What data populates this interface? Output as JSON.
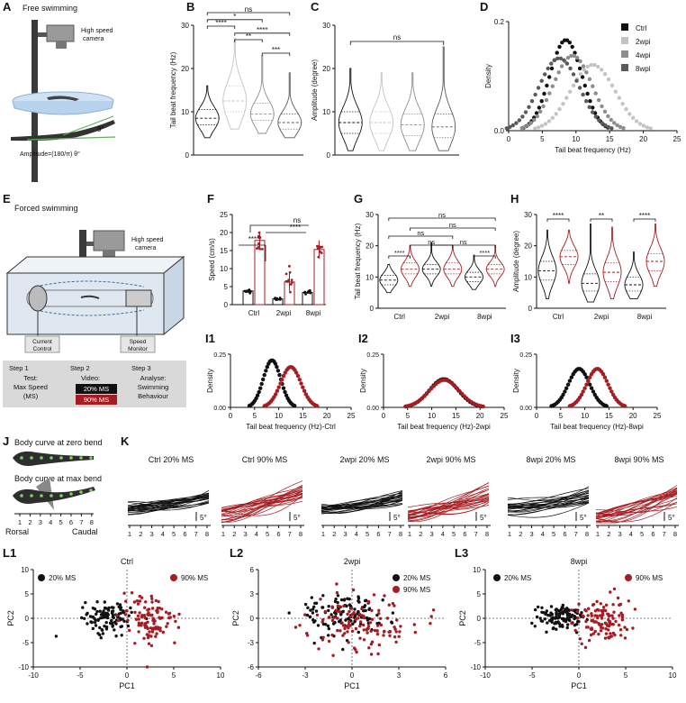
{
  "colors": {
    "black": "#111111",
    "red": "#a51d22",
    "grey1": "#c4c4c4",
    "grey2": "#8d8d8d",
    "grey3": "#5a5a5a",
    "box": "#d9d9d9"
  },
  "panel_labels": {
    "A": "A",
    "B": "B",
    "C": "C",
    "D": "D",
    "E": "E",
    "F": "F",
    "G": "G",
    "H": "H",
    "I1": "I1",
    "I2": "I2",
    "I3": "I3",
    "J": "J",
    "K": "K",
    "L1": "L1",
    "L2": "L2",
    "L3": "L3"
  },
  "panelA": {
    "title": "Free swimming",
    "camera": [
      "High speed",
      "camera"
    ],
    "theta": "θ°",
    "amplitude": "Amplitude=(180/π) θ°"
  },
  "panelE": {
    "title": "Forced swimming",
    "camera": [
      "High speed",
      "camera"
    ],
    "current_control": [
      "Current",
      "Control"
    ],
    "speed_monitor": [
      "Speed",
      "Monitor"
    ],
    "steps": [
      {
        "head": "Step 1",
        "lines": [
          "Test:",
          "Max Speed",
          "(MS)"
        ]
      },
      {
        "head": "Step 2",
        "lines": [
          "Video:"
        ]
      },
      {
        "head": "Step 3",
        "lines": [
          "Analyse:",
          "Swimming",
          "Behaviour"
        ]
      }
    ],
    "ms20": "20% MS",
    "ms90": "90% MS"
  },
  "panelJ": {
    "zero": "Body curve at zero bend",
    "max": "Body curve at max bend",
    "ticks": [
      "1",
      "2",
      "3",
      "4",
      "5",
      "6",
      "7",
      "8"
    ],
    "rostral": "Rorsal",
    "caudal": "Caudal"
  },
  "panelK": {
    "scale": "5°",
    "ticks": [
      "1",
      "2",
      "3",
      "4",
      "5",
      "6",
      "7",
      "8"
    ],
    "titles": [
      "Ctrl 20% MS",
      "Ctrl 90% MS",
      "2wpi 20% MS",
      "2wpi 90% MS",
      "8wpi 20% MS",
      "8wpi 90% MS"
    ]
  },
  "chart_data": [
    {
      "id": "B",
      "type": "violin",
      "ylabel": "Tail beat frequency (Hz)",
      "ylim": [
        0,
        30
      ],
      "yticks": [
        "0",
        "10",
        "20",
        "30"
      ],
      "groups": [
        {
          "median": 8.5,
          "q1": 7,
          "q3": 10.5,
          "min": 4,
          "max": 16
        },
        {
          "median": 12.5,
          "q1": 10,
          "q3": 16,
          "min": 6,
          "max": 27
        },
        {
          "median": 9.5,
          "q1": 8,
          "q3": 12,
          "min": 5,
          "max": 23
        },
        {
          "median": 7.5,
          "q1": 6,
          "q3": 9.5,
          "min": 4,
          "max": 19
        }
      ],
      "significance": [
        "ns",
        "*",
        "****",
        "****",
        "**",
        "***"
      ]
    },
    {
      "id": "C",
      "type": "violin",
      "ylabel": "Amplitude (degree)",
      "ylim": [
        0,
        30
      ],
      "yticks": [
        "0",
        "10",
        "20",
        "30"
      ],
      "groups": [
        {
          "median": 7.5,
          "q1": 5,
          "q3": 10,
          "min": 1,
          "max": 20
        },
        {
          "median": 7.5,
          "q1": 5,
          "q3": 10,
          "min": 1,
          "max": 19
        },
        {
          "median": 7,
          "q1": 4.5,
          "q3": 9.5,
          "min": 1,
          "max": 19
        },
        {
          "median": 6.5,
          "q1": 4,
          "q3": 9.5,
          "min": 1,
          "max": 25
        }
      ],
      "significance": [
        "ns"
      ]
    },
    {
      "id": "D",
      "type": "scatter",
      "xlabel": "Tail beat frequency (Hz)",
      "ylabel": "Density",
      "xlim": [
        0,
        25
      ],
      "ylim": [
        0,
        0.2
      ],
      "xticks": [
        "0",
        "5",
        "10",
        "15",
        "20",
        "25"
      ],
      "yticks": [
        "0.0",
        "0.2"
      ],
      "series": [
        {
          "name": "Ctrl",
          "mean": 8.5,
          "sd": 2.4,
          "color": "#111111"
        },
        {
          "name": "2wpi",
          "mean": 12.5,
          "sd": 3.3,
          "color": "#c4c4c4"
        },
        {
          "name": "4wpi",
          "mean": 9.5,
          "sd": 2.9,
          "color": "#8d8d8d"
        },
        {
          "name": "8wpi",
          "mean": 7.5,
          "sd": 3.0,
          "color": "#5a5a5a"
        }
      ]
    },
    {
      "id": "F",
      "type": "bar",
      "ylabel": "Speed (cm/s)",
      "ylim": [
        0,
        25
      ],
      "yticks": [
        "0",
        "5",
        "10",
        "15",
        "20",
        "25"
      ],
      "categories": [
        "Ctrl",
        "2wpi",
        "8wpi"
      ],
      "series": [
        {
          "name": "20% MS",
          "values": [
            3.8,
            1.6,
            3.4
          ]
        },
        {
          "name": "90% MS",
          "values": [
            17.8,
            6.3,
            15.3
          ]
        }
      ],
      "significance": [
        "ns",
        "****",
        "****"
      ]
    },
    {
      "id": "G",
      "type": "violin",
      "ylabel": "Tail beat frequency (Hz)",
      "ylim": [
        0,
        30
      ],
      "yticks": [
        "0",
        "10",
        "20",
        "30"
      ],
      "categories": [
        "Ctrl",
        "2wpi",
        "8wpi"
      ],
      "groups": [
        {
          "median": 9,
          "q1": 7.5,
          "q3": 10.5,
          "min": 5,
          "max": 14
        },
        {
          "median": 12.5,
          "q1": 11,
          "q3": 14.5,
          "min": 7,
          "max": 20
        },
        {
          "median": 12.5,
          "q1": 11,
          "q3": 14,
          "min": 7,
          "max": 21
        },
        {
          "median": 12.5,
          "q1": 11,
          "q3": 14.5,
          "min": 7,
          "max": 20
        },
        {
          "median": 10,
          "q1": 8.5,
          "q3": 11.5,
          "min": 6,
          "max": 17
        },
        {
          "median": 12.5,
          "q1": 11,
          "q3": 14,
          "min": 7,
          "max": 20
        }
      ],
      "significance": [
        "ns",
        "ns",
        "ns",
        "ns",
        "ns",
        "****",
        "****"
      ]
    },
    {
      "id": "H",
      "type": "violin",
      "ylabel": "Amplitude (degree)",
      "ylim": [
        0,
        30
      ],
      "yticks": [
        "0",
        "10",
        "20",
        "30"
      ],
      "categories": [
        "Ctrl",
        "2wpi",
        "8wpi"
      ],
      "groups": [
        {
          "median": 12,
          "q1": 9,
          "q3": 15,
          "min": 3,
          "max": 25
        },
        {
          "median": 16.5,
          "q1": 14,
          "q3": 18.5,
          "min": 8,
          "max": 25
        },
        {
          "median": 8,
          "q1": 5.5,
          "q3": 11,
          "min": 2,
          "max": 27
        },
        {
          "median": 11.5,
          "q1": 8.5,
          "q3": 14.5,
          "min": 3,
          "max": 26
        },
        {
          "median": 7.5,
          "q1": 5.5,
          "q3": 10,
          "min": 3,
          "max": 18
        },
        {
          "median": 15,
          "q1": 12,
          "q3": 17.5,
          "min": 7,
          "max": 27
        }
      ],
      "significance": [
        "****",
        "**",
        "****"
      ]
    },
    {
      "id": "I1",
      "type": "scatter",
      "xlabel": "Tail beat frequency (Hz)-Ctrl",
      "ylabel": "Density",
      "xlim": [
        0,
        25
      ],
      "ylim": [
        0,
        0.25
      ],
      "xticks": [
        "0",
        "5",
        "10",
        "15",
        "20",
        "25"
      ],
      "yticks": [
        "0.00",
        "0.25"
      ],
      "series": [
        {
          "name": "20% MS",
          "mean": 8.6,
          "sd": 1.8,
          "color": "#111111"
        },
        {
          "name": "90% MS",
          "mean": 12.5,
          "sd": 2.1,
          "color": "#a51d22"
        }
      ]
    },
    {
      "id": "I2",
      "type": "scatter",
      "xlabel": "Tail beat frequency (Hz)-2wpi",
      "ylabel": "Density",
      "xlim": [
        0,
        25
      ],
      "ylim": [
        0,
        0.25
      ],
      "xticks": [
        "0",
        "5",
        "10",
        "15",
        "20",
        "25"
      ],
      "yticks": [
        "0.00",
        "0.25"
      ],
      "series": [
        {
          "name": "20% MS",
          "mean": 12.5,
          "sd": 3.0,
          "color": "#111111"
        },
        {
          "name": "90% MS",
          "mean": 12.6,
          "sd": 3.1,
          "color": "#a51d22"
        }
      ]
    },
    {
      "id": "I3",
      "type": "scatter",
      "xlabel": "Tail beat frequency (Hz)-8wpi",
      "ylabel": "Density",
      "xlim": [
        0,
        25
      ],
      "ylim": [
        0,
        0.25
      ],
      "xticks": [
        "0",
        "5",
        "10",
        "15",
        "20",
        "25"
      ],
      "yticks": [
        "0.00",
        "0.25"
      ],
      "series": [
        {
          "name": "20% MS",
          "mean": 8.8,
          "sd": 2.2,
          "color": "#111111"
        },
        {
          "name": "90% MS",
          "mean": 12.6,
          "sd": 2.2,
          "color": "#a51d22"
        }
      ]
    },
    {
      "id": "L1",
      "type": "scatter",
      "title": "Ctrl",
      "xlabel": "PC1",
      "ylabel": "PC2",
      "xlim": [
        -10,
        10
      ],
      "ylim": [
        -10,
        10
      ],
      "xticks": [
        "-10",
        "-5",
        "0",
        "5",
        "10"
      ],
      "yticks": [
        "-10",
        "-5",
        "0",
        "5",
        "10"
      ],
      "series": [
        {
          "name": "20% MS",
          "cx": -2,
          "cy": 0.2,
          "sx": 1.3,
          "sy": 1.6,
          "n": 110,
          "color": "#111111"
        },
        {
          "name": "90% MS",
          "cx": 2.5,
          "cy": -0.5,
          "sx": 1.5,
          "sy": 2.5,
          "n": 110,
          "color": "#a51d22"
        }
      ]
    },
    {
      "id": "L2",
      "type": "scatter",
      "title": "2wpi",
      "xlabel": "PC1",
      "ylabel": "PC2",
      "xlim": [
        -6,
        6
      ],
      "ylim": [
        -6,
        6
      ],
      "xticks": [
        "-6",
        "-3",
        "0",
        "3",
        "6"
      ],
      "yticks": [
        "-6",
        "-3",
        "0",
        "3",
        "6"
      ],
      "series": [
        {
          "name": "20% MS",
          "cx": -0.6,
          "cy": 0.6,
          "sx": 1.4,
          "sy": 1.4,
          "n": 120,
          "color": "#111111"
        },
        {
          "name": "90% MS",
          "cx": 0.6,
          "cy": -0.6,
          "sx": 1.7,
          "sy": 1.7,
          "n": 120,
          "color": "#a51d22"
        }
      ]
    },
    {
      "id": "L3",
      "type": "scatter",
      "title": "8wpi",
      "xlabel": "PC1",
      "ylabel": "PC2",
      "xlim": [
        -10,
        10
      ],
      "ylim": [
        -10,
        10
      ],
      "xticks": [
        "-10",
        "-5",
        "0",
        "5",
        "10"
      ],
      "yticks": [
        "-10",
        "-5",
        "0",
        "5",
        "10"
      ],
      "series": [
        {
          "name": "20% MS",
          "cx": -2.1,
          "cy": 0.3,
          "sx": 1.2,
          "sy": 1.2,
          "n": 110,
          "color": "#111111"
        },
        {
          "name": "90% MS",
          "cx": 2.6,
          "cy": -0.6,
          "sx": 1.5,
          "sy": 2.3,
          "n": 110,
          "color": "#a51d22"
        }
      ]
    }
  ]
}
